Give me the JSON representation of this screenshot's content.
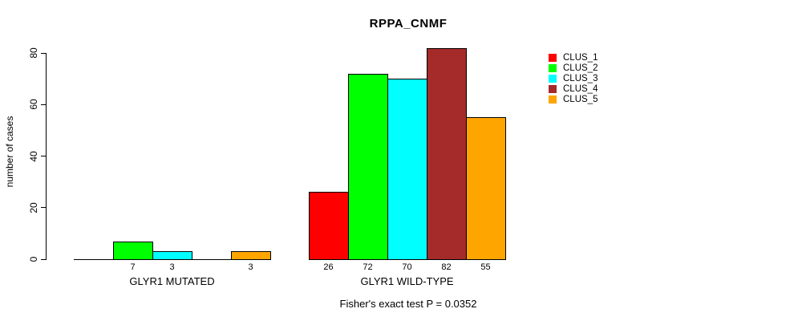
{
  "chart_data": {
    "type": "bar",
    "title": "RPPA_CNMF",
    "ylabel": "number of cases",
    "xlabel": "",
    "ylim": [
      0,
      80
    ],
    "yticks": [
      0,
      20,
      40,
      60,
      80
    ],
    "grid": false,
    "legend_position": "right",
    "value_labels_hidden_when_zero": true,
    "categories": [
      "GLYR1 MUTATED",
      "GLYR1 WILD-TYPE"
    ],
    "series": [
      {
        "name": "CLUS_1",
        "color": "#FF0000",
        "values": [
          0,
          26
        ]
      },
      {
        "name": "CLUS_2",
        "color": "#00FF00",
        "values": [
          7,
          72
        ]
      },
      {
        "name": "CLUS_3",
        "color": "#00FFFF",
        "values": [
          3,
          70
        ]
      },
      {
        "name": "CLUS_4",
        "color": "#A52A2A",
        "values": [
          0,
          82
        ]
      },
      {
        "name": "CLUS_5",
        "color": "#FFA500",
        "values": [
          3,
          55
        ]
      }
    ],
    "annotation": "Fisher's exact test P = 0.0352"
  }
}
